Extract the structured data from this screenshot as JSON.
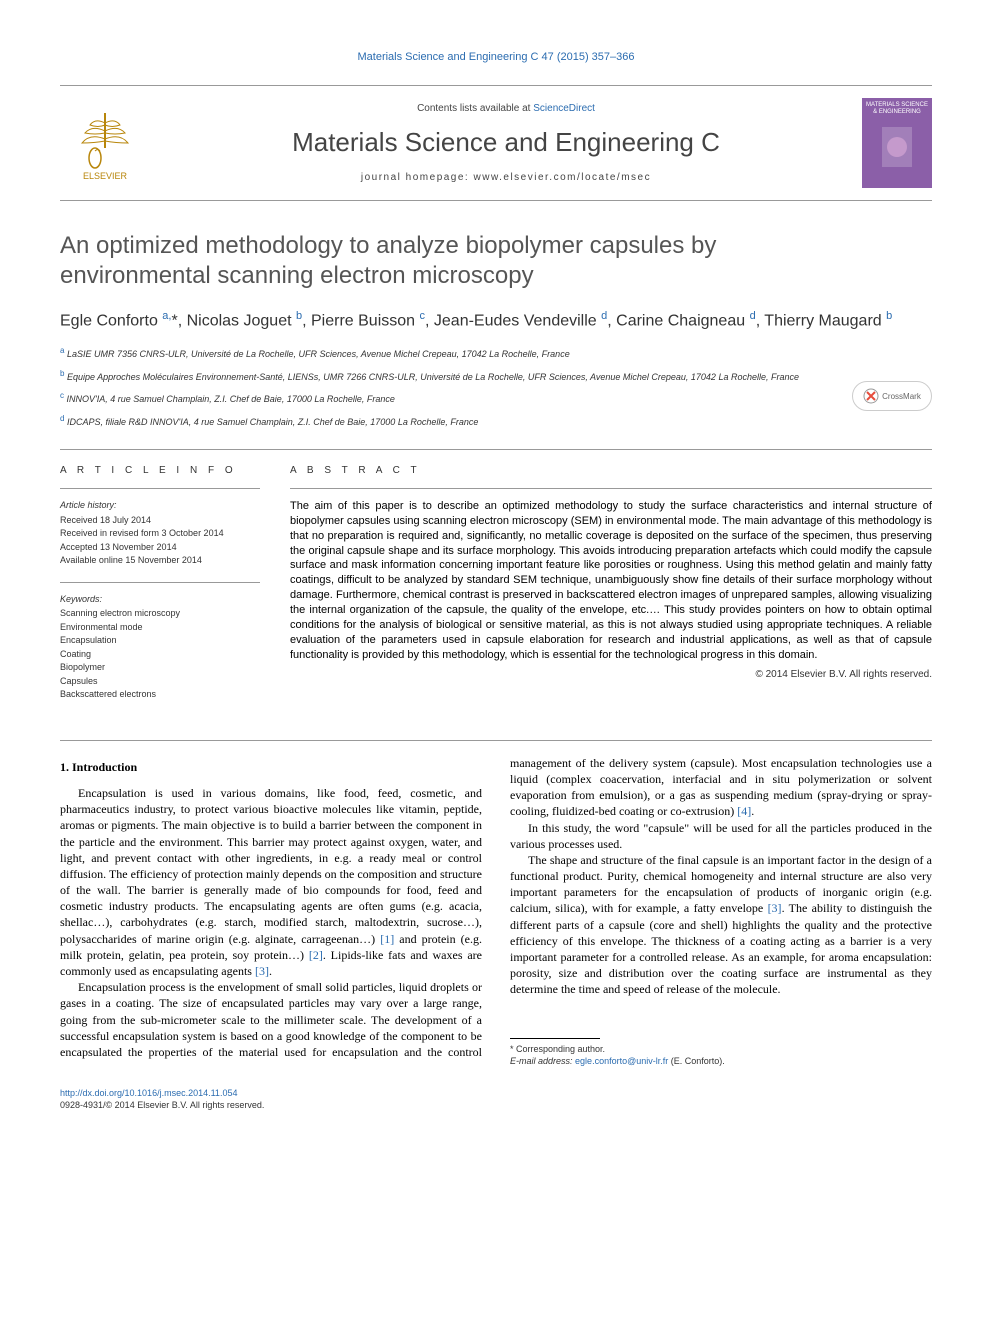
{
  "running_head": "Materials Science and Engineering C 47 (2015) 357–366",
  "masthead": {
    "contents_prefix": "Contents lists available at ",
    "contents_link": "ScienceDirect",
    "journal_name": "Materials Science and Engineering C",
    "homepage_prefix": "journal homepage: ",
    "homepage_url": "www.elsevier.com/locate/msec",
    "publisher": "ELSEVIER",
    "cover_text": "MATERIALS SCIENCE & ENGINEERING"
  },
  "crossmark_label": "CrossMark",
  "title": "An optimized methodology to analyze biopolymer capsules by environmental scanning electron microscopy",
  "authors_html": "Egle Conforto <span class='sup'>a,</span>*, Nicolas Joguet <span class='sup'>b</span>, Pierre Buisson <span class='sup'>c</span>, Jean-Eudes Vendeville <span class='sup'>d</span>, Carine Chaigneau <span class='sup'>d</span>, Thierry Maugard <span class='sup'>b</span>",
  "affiliations": [
    {
      "sup": "a",
      "text": "LaSIE UMR 7356 CNRS-ULR, Université de La Rochelle, UFR Sciences, Avenue Michel Crepeau, 17042 La Rochelle, France"
    },
    {
      "sup": "b",
      "text": "Equipe Approches Moléculaires Environnement-Santé, LIENSs, UMR 7266 CNRS-ULR, Université de La Rochelle, UFR Sciences, Avenue Michel Crepeau, 17042 La Rochelle, France"
    },
    {
      "sup": "c",
      "text": "INNOV'IA, 4 rue Samuel Champlain, Z.I. Chef de Baie, 17000 La Rochelle, France"
    },
    {
      "sup": "d",
      "text": "IDCAPS, filiale R&D INNOV'IA, 4 rue Samuel Champlain, Z.I. Chef de Baie, 17000 La Rochelle, France"
    }
  ],
  "info": {
    "heading": "A R T I C L E   I N F O",
    "history_label": "Article history:",
    "history": [
      "Received 18 July 2014",
      "Received in revised form 3 October 2014",
      "Accepted 13 November 2014",
      "Available online 15 November 2014"
    ],
    "keywords_label": "Keywords:",
    "keywords": [
      "Scanning electron microscopy",
      "Environmental mode",
      "Encapsulation",
      "Coating",
      "Biopolymer",
      "Capsules",
      "Backscattered electrons"
    ]
  },
  "abstract": {
    "heading": "A B S T R A C T",
    "text": "The aim of this paper is to describe an optimized methodology to study the surface characteristics and internal structure of biopolymer capsules using scanning electron microscopy (SEM) in environmental mode. The main advantage of this methodology is that no preparation is required and, significantly, no metallic coverage is deposited on the surface of the specimen, thus preserving the original capsule shape and its surface morphology. This avoids introducing preparation artefacts which could modify the capsule surface and mask information concerning important feature like porosities or roughness. Using this method gelatin and mainly fatty coatings, difficult to be analyzed by standard SEM technique, unambiguously show fine details of their surface morphology without damage. Furthermore, chemical contrast is preserved in backscattered electron images of unprepared samples, allowing visualizing the internal organization of the capsule, the quality of the envelope, etc.… This study provides pointers on how to obtain optimal conditions for the analysis of biological or sensitive material, as this is not always studied using appropriate techniques. A reliable evaluation of the parameters used in capsule elaboration for research and industrial applications, as well as that of capsule functionality is provided by this methodology, which is essential for the technological progress in this domain.",
    "copyright": "© 2014 Elsevier B.V. All rights reserved."
  },
  "body": {
    "sec1_heading": "1. Introduction",
    "p1": "Encapsulation is used in various domains, like food, feed, cosmetic, and pharmaceutics industry, to protect various bioactive molecules like vitamin, peptide, aromas or pigments. The main objective is to build a barrier between the component in the particle and the environment. This barrier may protect against oxygen, water, and light, and prevent contact with other ingredients, in e.g. a ready meal or control diffusion. The efficiency of protection mainly depends on the composition and structure of the wall. The barrier is generally made of bio compounds for food, feed and cosmetic industry products. The encapsulating agents are often gums (e.g. acacia, shellac…), carbohydrates (e.g. starch, modified starch, maltodextrin, sucrose…), polysaccharides of marine origin (e.g. alginate, carrageenan…) ",
    "p1_cite1": "[1]",
    "p1_b": " and protein (e.g. milk protein, gelatin, pea protein, soy protein…) ",
    "p1_cite2": "[2]",
    "p1_c": ". Lipids-like fats and waxes are commonly used as encapsulating agents ",
    "p1_cite3": "[3]",
    "p1_d": ".",
    "p2": "Encapsulation process is the envelopment of small solid particles, liquid droplets or gases in a coating. The size of encapsulated particles may vary over a large range, going from the sub-micrometer scale to the millimeter scale. The development of a successful encapsulation system is based on a good knowledge of the component to be encapsulated the properties of the material used for encapsulation and the control management of the delivery system (capsule). Most encapsulation technologies use a liquid (complex coacervation, interfacial and in situ polymerization or solvent evaporation from emulsion), or a gas as suspending medium (spray-drying or spray-cooling, fluidized-bed coating or co-extrusion) ",
    "p2_cite1": "[4]",
    "p2_b": ".",
    "p3": "In this study, the word \"capsule\" will be used for all the particles produced in the various processes used.",
    "p4": "The shape and structure of the final capsule is an important factor in the design of a functional product. Purity, chemical homogeneity and internal structure are also very important parameters for the encapsulation of products of inorganic origin (e.g. calcium, silica), with for example, a fatty envelope ",
    "p4_cite1": "[3]",
    "p4_b": ". The ability to distinguish the different parts of a capsule (core and shell) highlights the quality and the protective efficiency of this envelope. The thickness of a coating acting as a barrier is a very important parameter for a controlled release. As an example, for aroma encapsulation: porosity, size and distribution over the coating surface are instrumental as they determine the time and speed of release of the molecule."
  },
  "footnote": {
    "corr": "* Corresponding author.",
    "email_label": "E-mail address:",
    "email": "egle.conforto@univ-lr.fr",
    "email_who": "(E. Conforto)."
  },
  "bottom": {
    "doi": "http://dx.doi.org/10.1016/j.msec.2014.11.054",
    "issn_line": "0928-4931/© 2014 Elsevier B.V. All rights reserved."
  },
  "colors": {
    "link": "#2b6cb0",
    "text": "#000000",
    "muted": "#555555",
    "cover": "#8b5fa8"
  }
}
